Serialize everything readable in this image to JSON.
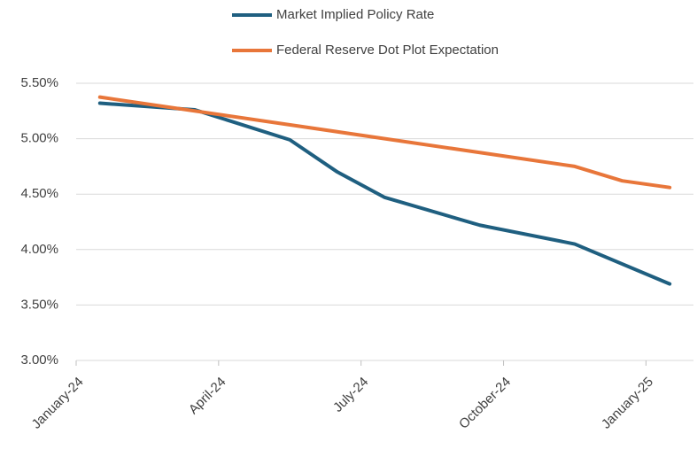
{
  "chart_data": {
    "type": "line",
    "x": [
      "2024-01",
      "2024-03",
      "2024-05",
      "2024-06",
      "2024-07",
      "2024-09",
      "2024-11",
      "2024-12",
      "2025-01"
    ],
    "series": [
      {
        "name": "Market Implied Policy Rate",
        "color": "#1f5f80",
        "values": [
          5.32,
          5.26,
          4.99,
          4.7,
          4.47,
          4.22,
          4.05,
          null,
          3.69
        ]
      },
      {
        "name": "Federal Reserve Dot Plot Expectation",
        "color": "#e8763a",
        "values": [
          5.375,
          null,
          null,
          null,
          null,
          null,
          4.75,
          4.62,
          4.56
        ]
      }
    ],
    "xlim": [
      "2024-01",
      "2025-02"
    ],
    "xticks": [
      {
        "value": "2024-01",
        "label": "January-24"
      },
      {
        "value": "2024-04",
        "label": "April-24"
      },
      {
        "value": "2024-07",
        "label": "July-24"
      },
      {
        "value": "2024-10",
        "label": "October-24"
      },
      {
        "value": "2025-01",
        "label": "January-25"
      }
    ],
    "ylim": [
      3,
      5.5
    ],
    "yticks": [
      {
        "value": 3,
        "label": "3.00%"
      },
      {
        "value": 3.5,
        "label": "3.50%"
      },
      {
        "value": 4,
        "label": "4.00%"
      },
      {
        "value": 4.5,
        "label": "4.50%"
      },
      {
        "value": 5,
        "label": "5.00%"
      },
      {
        "value": 5.5,
        "label": "5.50%"
      }
    ],
    "grid": true,
    "legend": "top"
  }
}
